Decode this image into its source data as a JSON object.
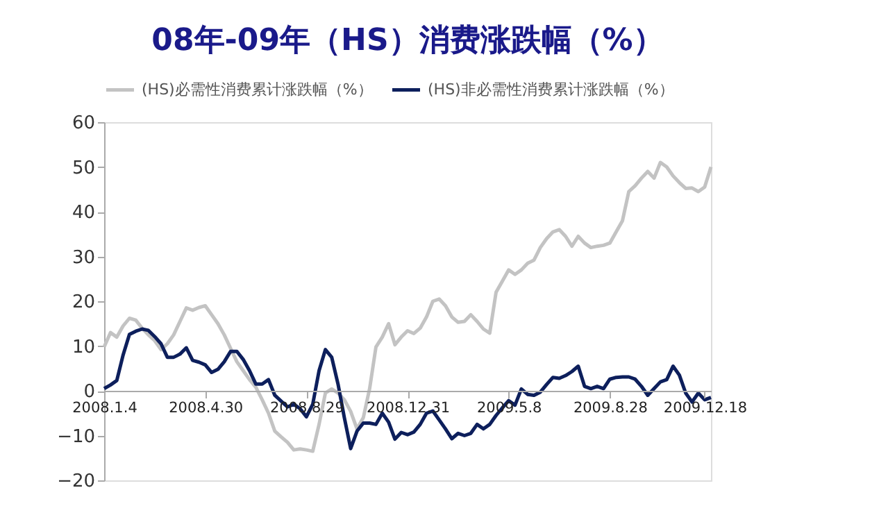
{
  "chart_data": {
    "type": "line",
    "title": "08年-09年（HS）消费涨跌幅（%）",
    "categories": [
      "2008.1.4",
      null,
      null,
      null,
      null,
      null,
      null,
      null,
      null,
      null,
      null,
      null,
      null,
      null,
      null,
      null,
      "2008.4.30",
      null,
      null,
      null,
      null,
      null,
      null,
      null,
      null,
      null,
      null,
      null,
      null,
      null,
      null,
      null,
      "2008.8.29",
      null,
      null,
      null,
      null,
      null,
      null,
      null,
      null,
      null,
      null,
      null,
      null,
      null,
      null,
      null,
      "2008.12.31",
      null,
      null,
      null,
      null,
      null,
      null,
      null,
      null,
      null,
      null,
      null,
      null,
      null,
      null,
      null,
      "2009.5.8",
      null,
      null,
      null,
      null,
      null,
      null,
      null,
      null,
      null,
      null,
      null,
      null,
      null,
      null,
      null,
      "2009.8.28",
      null,
      null,
      null,
      null,
      null,
      null,
      null,
      null,
      null,
      null,
      null,
      null,
      null,
      null,
      "2009.12.18",
      null
    ],
    "series": [
      {
        "name": "(HS)必需性消费累计涨跌幅（%）",
        "color": "#c3c3c3",
        "values": [
          9.8,
          13,
          12,
          14.5,
          16.2,
          15.8,
          14,
          12.5,
          11.2,
          9.2,
          10.5,
          12.5,
          15.5,
          18.5,
          18,
          18.6,
          19,
          17,
          15,
          12.5,
          9.5,
          6.5,
          4.5,
          2.5,
          0.8,
          -2,
          -5,
          -9,
          -10.3,
          -11.5,
          -13.2,
          -13,
          -13.2,
          -13.5,
          -7.5,
          -0.5,
          0.4,
          -0.5,
          -2,
          -4.6,
          -8.5,
          -6,
          0.5,
          9.8,
          12,
          15,
          10.3,
          12,
          13.4,
          12.8,
          14,
          16.5,
          20,
          20.5,
          19,
          16.5,
          15.3,
          15.5,
          17,
          15.5,
          13.8,
          12.9,
          22,
          24.5,
          27,
          26,
          27,
          28.5,
          29.2,
          32,
          34,
          35.5,
          36,
          34.5,
          32.3,
          34.5,
          33,
          32,
          32.3,
          32.5,
          33,
          35.5,
          38,
          44.5,
          45.8,
          47.5,
          49,
          47.5,
          51,
          50,
          48,
          46.5,
          45.2,
          45.3,
          44.5,
          45.5,
          50
        ]
      },
      {
        "name": "(HS)非必需性消费累计涨跌幅（%）",
        "color": "#0d1f5c",
        "values": [
          0.5,
          1.3,
          2.3,
          8,
          12.6,
          13.3,
          13.8,
          13.5,
          12.1,
          10.5,
          7.5,
          7.5,
          8.2,
          9.6,
          6.8,
          6.4,
          5.8,
          4.1,
          4.8,
          6.5,
          8.8,
          8.8,
          7,
          4.5,
          1.5,
          1.5,
          2.5,
          -1,
          -2.3,
          -3.6,
          -3,
          -4,
          -5.8,
          -3,
          4.5,
          9.2,
          7.5,
          1.5,
          -6,
          -12.9,
          -9,
          -7.2,
          -7.2,
          -7.5,
          -5,
          -7,
          -10.8,
          -9.3,
          -9.8,
          -9.2,
          -7.5,
          -5,
          -4.5,
          -6.5,
          -8.5,
          -10.7,
          -9.5,
          -10,
          -9.5,
          -7.5,
          -8.5,
          -7.5,
          -5.5,
          -3.8,
          -2.2,
          -3.2,
          0.4,
          -0.8,
          -1,
          -0.3,
          1.4,
          3,
          2.8,
          3.4,
          4.3,
          5.5,
          1,
          0.5,
          1,
          0.5,
          2.6,
          3,
          3.1,
          3.1,
          2.6,
          1,
          -1,
          0.5,
          2,
          2.5,
          5.5,
          3.5,
          -0.5,
          -2.5,
          -0.5,
          -2,
          -1.5
        ]
      }
    ],
    "ylim": [
      -20,
      60
    ],
    "yticks": [
      -20,
      -10,
      0,
      10,
      20,
      30,
      40,
      50,
      60
    ],
    "grid": false,
    "legend": "top",
    "marker": "none",
    "line_style": "solid"
  }
}
